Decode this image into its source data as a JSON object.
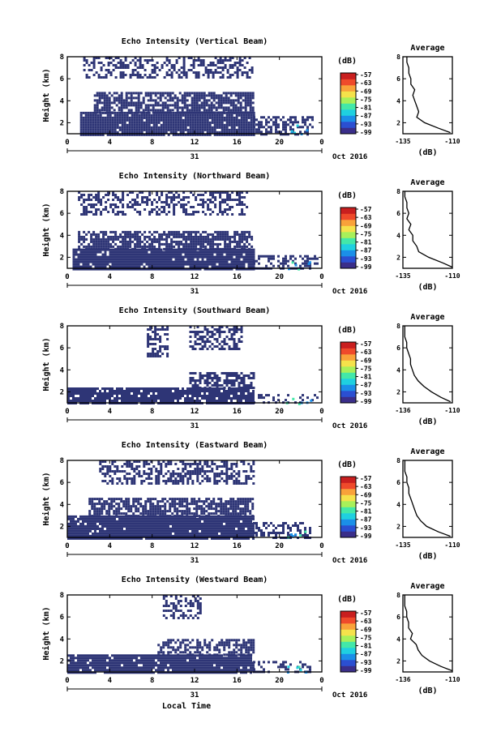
{
  "figure": {
    "x_axis_title": "Local Time",
    "date_label": "Oct 2016",
    "day_label": "31",
    "colorbar_unit": "(dB)",
    "colorbar_ticks": [
      "-57",
      "-63",
      "-69",
      "-75",
      "-81",
      "-87",
      "-93",
      "-99"
    ],
    "avg_title": "Average",
    "avg_xlabel": "(dB)",
    "colors": {
      "background": "#ffffff",
      "axis": "#000000",
      "echo_main": "#2e3576",
      "colorbar": [
        "#3a2e8a",
        "#2b4fd1",
        "#1b8fe8",
        "#1fd0e0",
        "#43e8a8",
        "#a8f05a",
        "#f5e24b",
        "#f9a23a",
        "#ef4a2b",
        "#c91f1f"
      ]
    }
  },
  "chart_data": [
    {
      "type": "heatmap",
      "title": "Echo Intensity (Vertical Beam)",
      "ylabel": "Height (km)",
      "xlabel": "Local Time",
      "x_ticks": [
        "0",
        "4",
        "8",
        "12",
        "16",
        "20",
        "0"
      ],
      "y_ticks": [
        "2",
        "4",
        "6",
        "8"
      ],
      "xlim": [
        0,
        24
      ],
      "ylim": [
        1,
        8
      ],
      "clim": [
        -99,
        -57
      ],
      "echo_regions": [
        {
          "x": [
            1.2,
            17.5
          ],
          "y": [
            1.0,
            3.0
          ],
          "density": 0.95
        },
        {
          "x": [
            2.5,
            17.5
          ],
          "y": [
            3.0,
            4.8
          ],
          "density": 0.75
        },
        {
          "x": [
            1.5,
            17.5
          ],
          "y": [
            6.2,
            8.0
          ],
          "density": 0.45
        },
        {
          "x": [
            17.5,
            23.2
          ],
          "y": [
            1.0,
            2.6
          ],
          "density": 0.5
        }
      ],
      "avg_profile": {
        "x_ticks": [
          "-135",
          "-110"
        ],
        "xlim": [
          -135,
          -110
        ],
        "y_ticks": [
          "2",
          "4",
          "6",
          "8"
        ],
        "ylim": [
          1,
          8
        ],
        "height": [
          1.1,
          1.5,
          2,
          2.5,
          3,
          3.5,
          4,
          4.5,
          5,
          5.5,
          6,
          6.5,
          7,
          7.5,
          8
        ],
        "value": [
          -111,
          -117,
          -124,
          -128,
          -127,
          -128,
          -129,
          -130,
          -129,
          -131,
          -131,
          -132,
          -132,
          -133,
          -133
        ]
      }
    },
    {
      "type": "heatmap",
      "title": "Echo Intensity (Northward Beam)",
      "ylabel": "Height (km)",
      "xlabel": "Local Time",
      "x_ticks": [
        "0",
        "4",
        "8",
        "12",
        "16",
        "20",
        "0"
      ],
      "y_ticks": [
        "2",
        "4",
        "6",
        "8"
      ],
      "xlim": [
        0,
        24
      ],
      "ylim": [
        1,
        8
      ],
      "clim": [
        -99,
        -57
      ],
      "echo_regions": [
        {
          "x": [
            0.5,
            17.5
          ],
          "y": [
            1.0,
            2.8
          ],
          "density": 0.95
        },
        {
          "x": [
            1.0,
            17.5
          ],
          "y": [
            2.8,
            4.4
          ],
          "density": 0.7
        },
        {
          "x": [
            1.0,
            17.0
          ],
          "y": [
            5.8,
            8.0
          ],
          "density": 0.45
        },
        {
          "x": [
            17.5,
            23.5
          ],
          "y": [
            1.0,
            2.2
          ],
          "density": 0.5
        }
      ],
      "avg_profile": {
        "x_ticks": [
          "-135",
          "-110"
        ],
        "xlim": [
          -135,
          -110
        ],
        "y_ticks": [
          "2",
          "4",
          "6",
          "8"
        ],
        "ylim": [
          1,
          8
        ],
        "height": [
          1.1,
          1.5,
          2,
          2.5,
          3,
          3.5,
          4,
          4.5,
          5,
          5.5,
          6,
          6.5,
          7,
          7.5,
          8
        ],
        "value": [
          -110,
          -115,
          -122,
          -127,
          -128,
          -130,
          -130,
          -132,
          -131,
          -133,
          -132,
          -133,
          -133,
          -134,
          -134
        ]
      }
    },
    {
      "type": "heatmap",
      "title": "Echo Intensity (Southward Beam)",
      "ylabel": "Height (km)",
      "xlabel": "Local Time",
      "x_ticks": [
        "0",
        "4",
        "8",
        "12",
        "16",
        "20",
        "0"
      ],
      "y_ticks": [
        "2",
        "4",
        "6",
        "8"
      ],
      "xlim": [
        0,
        24
      ],
      "ylim": [
        1,
        8
      ],
      "clim": [
        -99,
        -57
      ],
      "echo_regions": [
        {
          "x": [
            0.0,
            17.5
          ],
          "y": [
            1.0,
            2.4
          ],
          "density": 0.9
        },
        {
          "x": [
            11.5,
            17.5
          ],
          "y": [
            2.4,
            3.8
          ],
          "density": 0.6
        },
        {
          "x": [
            7.5,
            9.5
          ],
          "y": [
            5.2,
            8.0
          ],
          "density": 0.5
        },
        {
          "x": [
            11.5,
            16.5
          ],
          "y": [
            6.0,
            8.0
          ],
          "density": 0.5
        },
        {
          "x": [
            17.5,
            23.5
          ],
          "y": [
            1.0,
            1.8
          ],
          "density": 0.3
        }
      ],
      "avg_profile": {
        "x_ticks": [
          "-136",
          "-110"
        ],
        "xlim": [
          -136,
          -110
        ],
        "y_ticks": [
          "2",
          "4",
          "6",
          "8"
        ],
        "ylim": [
          1,
          8
        ],
        "height": [
          1.1,
          1.5,
          2,
          2.5,
          3,
          3.5,
          4,
          4.5,
          5,
          5.5,
          6,
          6.5,
          7,
          7.5,
          8
        ],
        "value": [
          -111,
          -116,
          -121,
          -125,
          -128,
          -130,
          -131,
          -132,
          -132,
          -133,
          -134,
          -134,
          -135,
          -135,
          -135
        ]
      }
    },
    {
      "type": "heatmap",
      "title": "Echo Intensity (Eastward Beam)",
      "ylabel": "Height (km)",
      "xlabel": "Local Time",
      "x_ticks": [
        "0",
        "4",
        "8",
        "12",
        "16",
        "20",
        "0"
      ],
      "y_ticks": [
        "2",
        "4",
        "6",
        "8"
      ],
      "xlim": [
        0,
        24
      ],
      "ylim": [
        1,
        8
      ],
      "clim": [
        -99,
        -57
      ],
      "echo_regions": [
        {
          "x": [
            0.0,
            17.5
          ],
          "y": [
            1.0,
            3.0
          ],
          "density": 0.95
        },
        {
          "x": [
            2.0,
            17.5
          ],
          "y": [
            3.0,
            4.6
          ],
          "density": 0.7
        },
        {
          "x": [
            3.0,
            17.5
          ],
          "y": [
            6.0,
            8.0
          ],
          "density": 0.5
        },
        {
          "x": [
            17.5,
            23.0
          ],
          "y": [
            1.0,
            2.4
          ],
          "density": 0.45
        }
      ],
      "avg_profile": {
        "x_ticks": [
          "-135",
          "-110"
        ],
        "xlim": [
          -135,
          -110
        ],
        "y_ticks": [
          "2",
          "4",
          "6",
          "8"
        ],
        "ylim": [
          1,
          8
        ],
        "height": [
          1.1,
          1.5,
          2,
          2.5,
          3,
          3.5,
          4,
          4.5,
          5,
          5.5,
          6,
          6.5,
          7,
          7.5,
          8
        ],
        "value": [
          -111,
          -117,
          -123,
          -126,
          -128,
          -129,
          -130,
          -131,
          -132,
          -132,
          -133,
          -133,
          -134,
          -134,
          -134
        ]
      }
    },
    {
      "type": "heatmap",
      "title": "Echo Intensity (Westward Beam)",
      "ylabel": "Height (km)",
      "xlabel": "Local Time",
      "x_ticks": [
        "0",
        "4",
        "8",
        "12",
        "16",
        "20",
        "0"
      ],
      "y_ticks": [
        "2",
        "4",
        "6",
        "8"
      ],
      "xlim": [
        0,
        24
      ],
      "ylim": [
        1,
        8
      ],
      "clim": [
        -99,
        -57
      ],
      "echo_regions": [
        {
          "x": [
            0.0,
            17.5
          ],
          "y": [
            1.0,
            2.6
          ],
          "density": 0.9
        },
        {
          "x": [
            8.5,
            17.5
          ],
          "y": [
            2.6,
            4.0
          ],
          "density": 0.55
        },
        {
          "x": [
            9.0,
            12.5
          ],
          "y": [
            6.0,
            8.0
          ],
          "density": 0.45
        },
        {
          "x": [
            17.5,
            23.0
          ],
          "y": [
            1.0,
            2.0
          ],
          "density": 0.35
        }
      ],
      "avg_profile": {
        "x_ticks": [
          "-136",
          "-110"
        ],
        "xlim": [
          -136,
          -110
        ],
        "y_ticks": [
          "2",
          "4",
          "6",
          "8"
        ],
        "ylim": [
          1,
          8
        ],
        "height": [
          1.1,
          1.5,
          2,
          2.5,
          3,
          3.5,
          4,
          4.5,
          5,
          5.5,
          6,
          6.5,
          7,
          7.5,
          8
        ],
        "value": [
          -110,
          -116,
          -122,
          -126,
          -128,
          -129,
          -132,
          -131,
          -133,
          -133,
          -134,
          -134,
          -135,
          -135,
          -135
        ]
      }
    }
  ]
}
